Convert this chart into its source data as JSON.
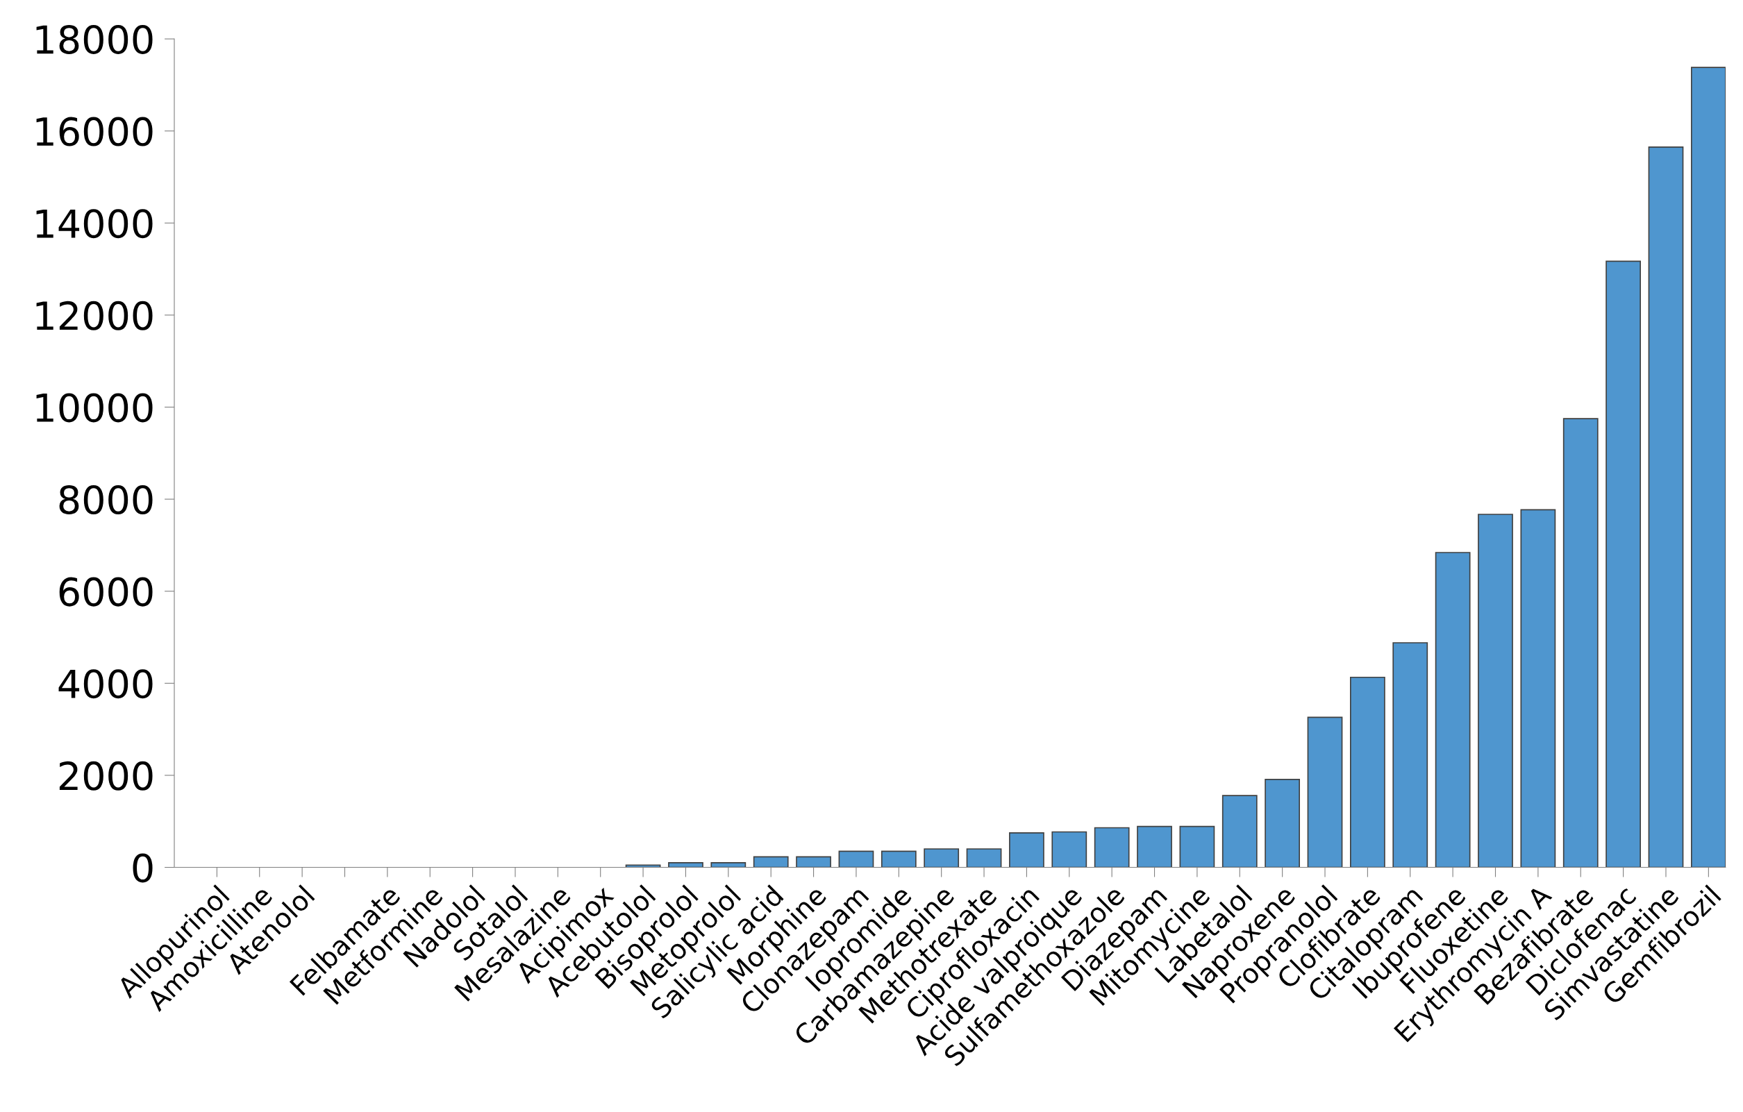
{
  "chart_data": {
    "type": "bar",
    "categories": [
      "Allopurinol",
      "Amoxicilline",
      "Atenolol",
      null,
      "Felbamate",
      "Metformine",
      "Nadolol",
      "Sotalol",
      "Mesalazine",
      "Acipimox",
      "Acebutolol",
      "Bisoprolol",
      "Metoprolol",
      "Salicylic acid",
      "Morphine",
      "Clonazepam",
      "Iopromide",
      "Carbamazepine",
      "Methotrexate",
      "Ciprofloxacin",
      "Acide valproique",
      "Sulfamethoxazole",
      "Diazepam",
      "Mitomycine",
      "Labetalol",
      "Naproxene",
      "Propranolol",
      "Clofibrate",
      "Citalopram",
      "Ibuprofene",
      "Fluoxetine",
      "Erythromycin A",
      "Bezafibrate",
      "Diclofenac",
      "Simvastatine",
      "Gemfibrozil"
    ],
    "values": [
      0,
      0,
      0,
      0,
      0,
      0,
      0,
      0,
      0,
      0,
      50,
      100,
      100,
      230,
      230,
      350,
      350,
      400,
      400,
      750,
      770,
      860,
      890,
      890,
      1560,
      1910,
      3260,
      4130,
      4880,
      6840,
      7670,
      7770,
      9750,
      13170,
      15650,
      17380
    ],
    "color": "#4f96cf",
    "ylim": [
      0,
      18000
    ],
    "yticks": [
      0,
      2000,
      4000,
      6000,
      8000,
      10000,
      12000,
      14000,
      16000,
      18000
    ],
    "grid": false,
    "legend": false
  }
}
